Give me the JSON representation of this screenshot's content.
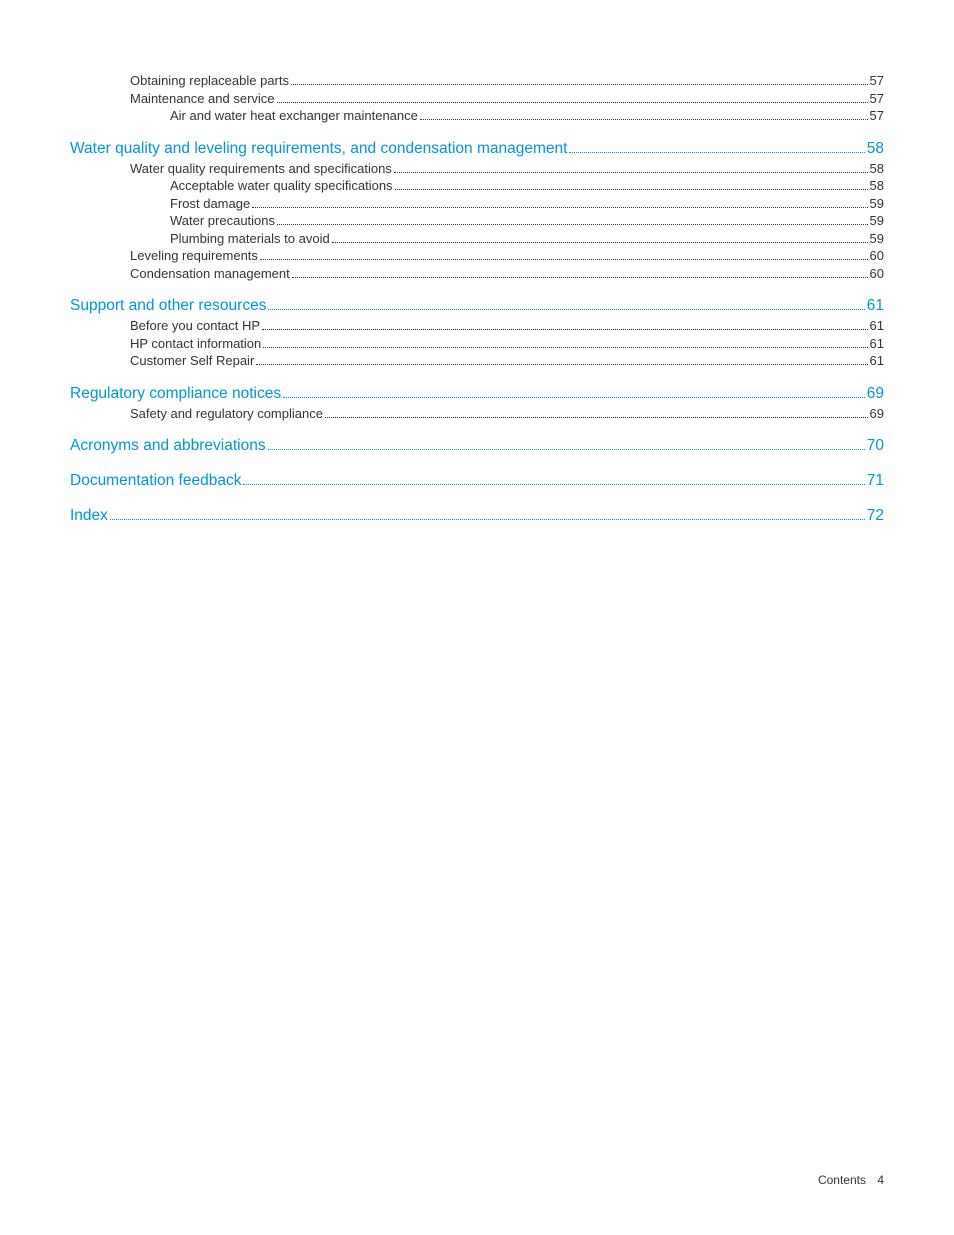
{
  "colors": {
    "link": "#0096d6",
    "text": "#333333",
    "background": "#ffffff"
  },
  "toc": {
    "groups": [
      {
        "heading": null,
        "items": [
          {
            "level": 1,
            "title": "Obtaining replaceable parts",
            "page": "57"
          },
          {
            "level": 1,
            "title": "Maintenance and service",
            "page": "57"
          },
          {
            "level": 2,
            "title": "Air and water heat exchanger maintenance",
            "page": "57"
          }
        ]
      },
      {
        "heading": {
          "title": "Water quality and leveling requirements, and condensation management",
          "page": "58"
        },
        "items": [
          {
            "level": 1,
            "title": "Water quality requirements and specifications",
            "page": "58"
          },
          {
            "level": 2,
            "title": "Acceptable water quality specifications",
            "page": "58"
          },
          {
            "level": 2,
            "title": "Frost damage",
            "page": "59"
          },
          {
            "level": 2,
            "title": "Water precautions",
            "page": "59"
          },
          {
            "level": 2,
            "title": "Plumbing materials to avoid",
            "page": "59"
          },
          {
            "level": 1,
            "title": "Leveling requirements",
            "page": "60"
          },
          {
            "level": 1,
            "title": "Condensation management",
            "page": "60"
          }
        ]
      },
      {
        "heading": {
          "title": "Support and other resources",
          "page": "61"
        },
        "items": [
          {
            "level": 1,
            "title": "Before you contact HP",
            "page": "61"
          },
          {
            "level": 1,
            "title": "HP contact information",
            "page": "61"
          },
          {
            "level": 1,
            "title": "Customer Self Repair",
            "page": "61"
          }
        ]
      },
      {
        "heading": {
          "title": "Regulatory compliance notices",
          "page": "69"
        },
        "items": [
          {
            "level": 1,
            "title": "Safety and regulatory compliance",
            "page": "69"
          }
        ]
      },
      {
        "heading": {
          "title": "Acronyms and abbreviations",
          "page": "70"
        },
        "items": []
      },
      {
        "heading": {
          "title": "Documentation feedback",
          "page": "71"
        },
        "items": []
      },
      {
        "heading": {
          "title": "Index",
          "page": "72"
        },
        "items": []
      }
    ]
  },
  "footer": {
    "label": "Contents",
    "page": "4"
  }
}
